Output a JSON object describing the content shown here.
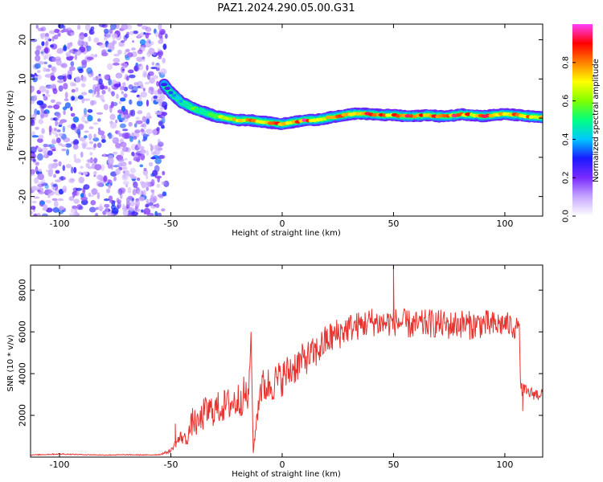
{
  "title": "PAZ1.2024.290.05.00.G31",
  "chart_data": [
    {
      "type": "heatmap",
      "xlabel": "Height of straight line (km)",
      "ylabel": "Frequency (Hz)",
      "xlim": [
        -113,
        117
      ],
      "ylim": [
        -25,
        24
      ],
      "xticks": [
        -100,
        -50,
        0,
        50,
        100
      ],
      "yticks": [
        20,
        10,
        0,
        -10,
        -20
      ],
      "colorbar": {
        "label": "Normalized spectral amplitude",
        "range": [
          0,
          1
        ],
        "ticks": [
          0.0,
          0.2,
          0.4,
          0.6,
          0.8
        ],
        "colors": [
          "#ffffff",
          "#c8a8ff",
          "#7a2bff",
          "#1a1aff",
          "#00c8ff",
          "#00ff80",
          "#80ff00",
          "#ffff00",
          "#ff8000",
          "#ff0000",
          "#ff40ff"
        ]
      },
      "noise_region_x": [
        -113,
        -52
      ],
      "ridge": {
        "x": [
          -53,
          -50,
          -45,
          -40,
          -35,
          -30,
          -25,
          -20,
          -15,
          -10,
          -5,
          0,
          5,
          10,
          15,
          20,
          25,
          30,
          35,
          40,
          45,
          50,
          55,
          60,
          65,
          70,
          75,
          80,
          85,
          90,
          95,
          100,
          105,
          110,
          117
        ],
        "y": [
          8.5,
          6.5,
          4.0,
          2.5,
          1.5,
          0.5,
          0.0,
          -0.5,
          -0.5,
          -0.8,
          -1.2,
          -1.5,
          -1.0,
          -0.5,
          -0.5,
          0.0,
          0.5,
          1.0,
          1.2,
          1.0,
          0.8,
          0.8,
          0.5,
          0.5,
          0.8,
          0.5,
          0.5,
          1.0,
          0.8,
          0.5,
          0.8,
          1.0,
          0.8,
          0.5,
          0.2
        ],
        "amp": [
          0.3,
          0.35,
          0.45,
          0.55,
          0.6,
          0.65,
          0.7,
          0.75,
          0.8,
          0.85,
          0.9,
          0.85,
          0.9,
          0.95,
          0.9,
          0.85,
          0.9,
          0.95,
          0.9,
          0.9,
          0.95,
          0.9,
          0.9,
          0.95,
          0.9,
          0.9,
          0.95,
          0.9,
          0.85,
          0.9,
          0.95,
          0.9,
          0.9,
          0.85,
          0.8
        ]
      }
    },
    {
      "type": "line",
      "xlabel": "Height of straight line (km)",
      "ylabel": "SNR (10 * v/v)",
      "xlim": [
        -113,
        117
      ],
      "ylim": [
        0,
        9200
      ],
      "xticks": [
        -100,
        -50,
        0,
        50,
        100
      ],
      "yticks": [
        2000,
        4000,
        6000,
        8000
      ],
      "color": "#e8322e",
      "series": [
        {
          "x": [
            -113,
            -100,
            -90,
            -80,
            -70,
            -60,
            -55,
            -50,
            -48,
            -45,
            -43,
            -40,
            -38,
            -35,
            -30,
            -25,
            -20,
            -17,
            -15,
            -14,
            -13,
            -10,
            -5,
            0,
            5,
            10,
            15,
            20,
            25,
            30,
            35,
            40,
            45,
            50,
            55,
            60,
            65,
            70,
            75,
            80,
            85,
            90,
            95,
            100,
            105,
            106.5,
            107,
            110,
            115,
            117
          ],
          "y": [
            100,
            150,
            120,
            100,
            110,
            100,
            120,
            300,
            650,
            1000,
            800,
            1800,
            1500,
            2100,
            2300,
            2500,
            2700,
            3000,
            2800,
            6000,
            200,
            3300,
            3500,
            3800,
            4300,
            4700,
            5000,
            5600,
            5900,
            6200,
            6300,
            6500,
            6400,
            6500,
            6400,
            6300,
            6400,
            6400,
            6300,
            6400,
            6300,
            6400,
            6300,
            6400,
            6200,
            6400,
            3300,
            3100,
            3000,
            3100
          ],
          "noise_amp": [
            20,
            30,
            20,
            20,
            20,
            20,
            30,
            100,
            200,
            400,
            300,
            700,
            600,
            800,
            800,
            800,
            900,
            900,
            800,
            0,
            0,
            900,
            900,
            900,
            900,
            800,
            800,
            800,
            800,
            700,
            700,
            700,
            700,
            700,
            700,
            700,
            700,
            700,
            700,
            700,
            700,
            700,
            700,
            600,
            600,
            0,
            400,
            300,
            300,
            300
          ],
          "spikes": [
            {
              "x": 50,
              "y": 9200
            },
            {
              "x": -14,
              "y": 6000
            },
            {
              "x": -13,
              "y": 200
            },
            {
              "x": -48,
              "y": 1600
            },
            {
              "x": 108,
              "y": 2200
            }
          ]
        }
      ]
    }
  ]
}
